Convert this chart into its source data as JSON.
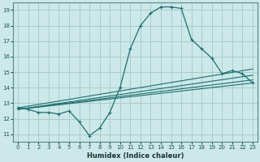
{
  "xlabel": "Humidex (Indice chaleur)",
  "ylabel": "",
  "xlim": [
    -0.5,
    23.5
  ],
  "ylim": [
    10.5,
    19.5
  ],
  "xticks": [
    0,
    1,
    2,
    3,
    4,
    5,
    6,
    7,
    8,
    9,
    10,
    11,
    12,
    13,
    14,
    15,
    16,
    17,
    18,
    19,
    20,
    21,
    22,
    23
  ],
  "yticks": [
    11,
    12,
    13,
    14,
    15,
    16,
    17,
    18,
    19
  ],
  "background_color": "#cce8e8",
  "grid_color": "#aacccc",
  "line_color": "#1a7070",
  "lines": [
    [
      0,
      12.7,
      1,
      12.6,
      2,
      12.4,
      3,
      12.4,
      4,
      12.3,
      5,
      12.5,
      6,
      11.8,
      7,
      10.9,
      8,
      11.4,
      9,
      12.4,
      10,
      14.0,
      11,
      16.5,
      12,
      18.0,
      13,
      18.8,
      14,
      19.2,
      15,
      19.2,
      16,
      19.1,
      17,
      17.1,
      18,
      16.5,
      19,
      15.9,
      20,
      14.9,
      21,
      15.1,
      22,
      14.9,
      23,
      14.3
    ],
    [
      0,
      12.7,
      23,
      14.4
    ],
    [
      0,
      12.6,
      23,
      14.3
    ],
    [
      0,
      12.6,
      23,
      14.3
    ],
    [
      0,
      12.6,
      23,
      14.3
    ]
  ],
  "trend_lines": [
    {
      "x": [
        0,
        23
      ],
      "y": [
        12.7,
        15.2
      ]
    },
    {
      "x": [
        0,
        23
      ],
      "y": [
        12.6,
        14.8
      ]
    },
    {
      "x": [
        0,
        23
      ],
      "y": [
        12.6,
        14.5
      ]
    },
    {
      "x": [
        0,
        23
      ],
      "y": [
        12.6,
        14.3
      ]
    }
  ]
}
